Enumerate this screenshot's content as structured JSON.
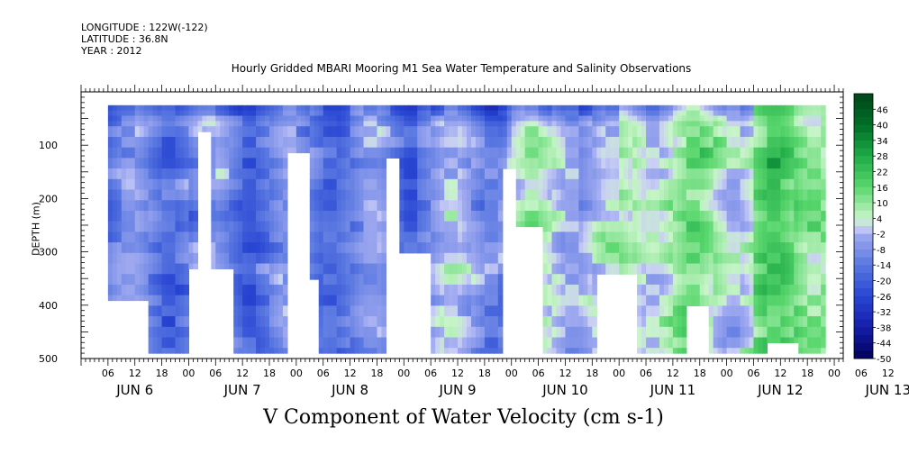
{
  "header": {
    "longitude": "LONGITUDE : 122W(-122)",
    "latitude": "LATITUDE : 36.8N",
    "year": "YEAR : 2012"
  },
  "chart_data": {
    "type": "heatmap",
    "title": "Hourly Gridded MBARI Mooring M1 Sea Water Temperature and Salinity Observations",
    "bottom_title": "V Component of Water Velocity (cm s-1)",
    "ylabel": "DEPTH (m)",
    "ylim": [
      500,
      0
    ],
    "y_ticks": [
      100,
      200,
      300,
      400,
      500
    ],
    "xlim_hours": [
      0,
      170
    ],
    "x_hour_labels": [
      "06",
      "12",
      "18",
      "00",
      "06",
      "12",
      "18",
      "00",
      "06",
      "12",
      "18",
      "00",
      "06",
      "12",
      "18",
      "00",
      "06",
      "12",
      "18",
      "00",
      "06",
      "12",
      "18",
      "00",
      "06",
      "12",
      "18",
      "00",
      "06",
      "12",
      "18",
      "00"
    ],
    "x_day_labels": [
      "JUN  6",
      "JUN  7",
      "JUN  8",
      "JUN  9",
      "JUN 10",
      "JUN 11",
      "JUN 12",
      "JUN 13"
    ],
    "colorbar_labels": [
      "46",
      "40",
      "34",
      "28",
      "22",
      "16",
      "10",
      "4",
      "-2",
      "-8",
      "-14",
      "-20",
      "-26",
      "-32",
      "-38",
      "-44",
      "-50"
    ],
    "colorbar_range": [
      -50,
      52
    ],
    "colors": {
      "strong_neg": "#000066",
      "neg": "#1a3fcc",
      "mid_neg": "#7f8fe6",
      "near_zero_neg": "#c8ccf2",
      "near_zero_pos": "#c8f2c8",
      "pos": "#33cc55",
      "strong_pos": "#005a1a"
    },
    "data_time_range_hours": [
      6,
      166
    ],
    "data_depth_range": [
      25,
      490
    ],
    "field_description": [
      {
        "hours": [
          6,
          75
        ],
        "depth_mean": -12,
        "surface": -28
      },
      {
        "hours": [
          75,
          95
        ],
        "depth_mean": -6,
        "surface": -36
      },
      {
        "hours": [
          95,
          120
        ],
        "depth_mean": 0,
        "surface": -30
      },
      {
        "hours": [
          120,
          150
        ],
        "depth_mean": 6,
        "surface": -20
      },
      {
        "hours": [
          150,
          166
        ],
        "depth_mean": 14,
        "surface": 18
      }
    ]
  }
}
